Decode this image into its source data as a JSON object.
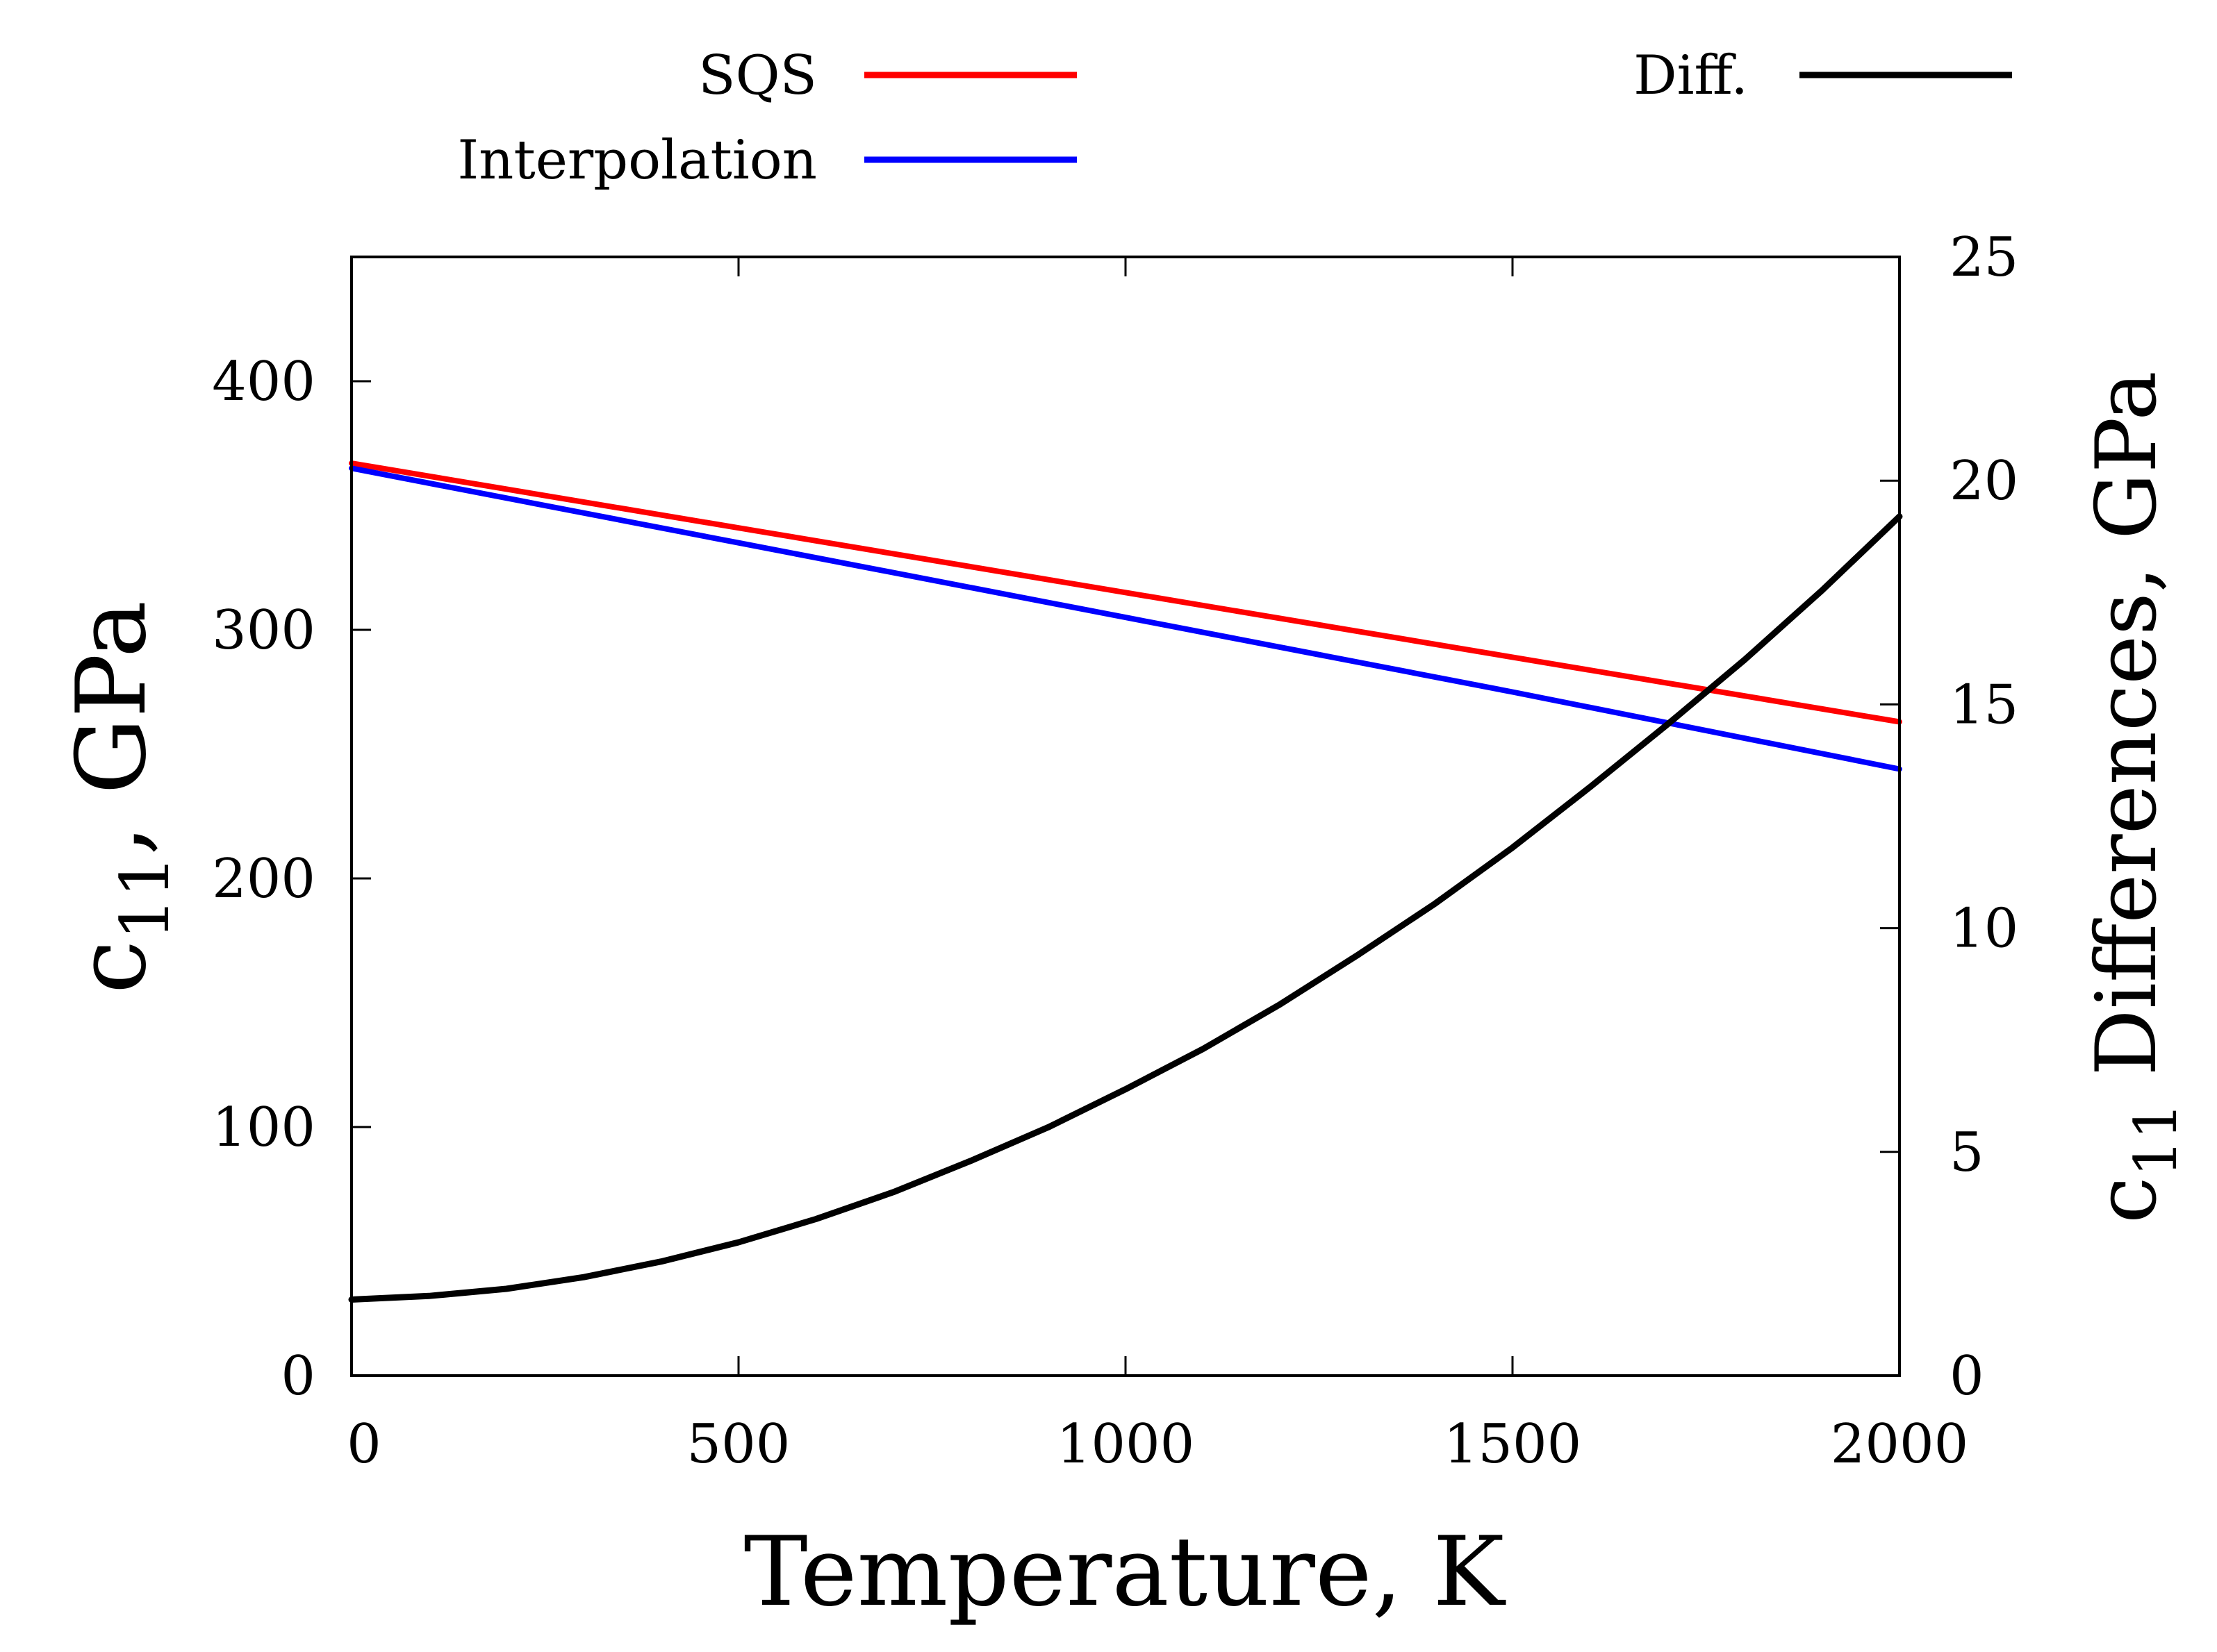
{
  "chart_data": {
    "type": "line",
    "xlabel": "Temperature, K",
    "ylabel": {
      "main": "c",
      "sub": "11",
      "rest": ", GPa"
    },
    "y2label": {
      "main": "c",
      "sub": "11",
      "rest": " Differences, GPa"
    },
    "xlim": [
      0,
      2000
    ],
    "ylim": [
      0,
      450
    ],
    "y2lim": [
      0,
      25
    ],
    "xticks": [
      0,
      500,
      1000,
      1500,
      2000
    ],
    "yticks": [
      0,
      100,
      200,
      300,
      400
    ],
    "y2ticks": [
      0,
      5,
      10,
      15,
      20,
      25
    ],
    "grid": false,
    "legend": {
      "left": "top-center",
      "right": "top-right"
    },
    "series": [
      {
        "name": "SQS",
        "axis": "left",
        "color": "#ff0000",
        "x": [
          0,
          500,
          1000,
          1500,
          2000
        ],
        "y": [
          367,
          341,
          315,
          289,
          263
        ]
      },
      {
        "name": "Interpolation",
        "axis": "left",
        "color": "#0000ff",
        "x": [
          0,
          500,
          1000,
          1500,
          2000
        ],
        "y": [
          365,
          335,
          305,
          275,
          244
        ]
      },
      {
        "name": "Diff.",
        "axis": "right",
        "color": "#000000",
        "x": [
          0,
          100,
          200,
          300,
          400,
          500,
          600,
          700,
          800,
          900,
          1000,
          1100,
          1200,
          1300,
          1400,
          1500,
          1600,
          1700,
          1800,
          1900,
          2000
        ],
        "y": [
          1.7,
          1.78,
          1.94,
          2.2,
          2.55,
          2.98,
          3.5,
          4.1,
          4.8,
          5.55,
          6.4,
          7.3,
          8.3,
          9.4,
          10.55,
          11.8,
          13.15,
          14.55,
          16.0,
          17.55,
          19.2
        ]
      }
    ]
  }
}
